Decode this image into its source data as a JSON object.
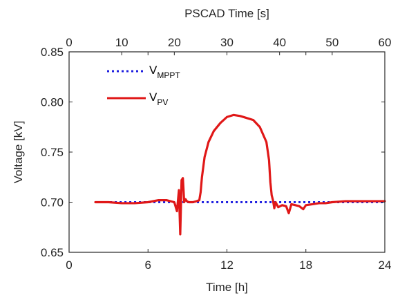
{
  "chart_data": {
    "type": "line",
    "xlabel": "Time [h]",
    "ylabel": "Voltage [kV]",
    "x2label": "PSCAD Time [s]",
    "xlim": [
      0,
      24
    ],
    "x2lim": [
      0,
      60
    ],
    "ylim": [
      0.65,
      0.85
    ],
    "xticks": [
      "0",
      "6",
      "12",
      "18",
      "24"
    ],
    "x2ticks": [
      "0",
      "10",
      "20",
      "30",
      "40",
      "50",
      "60"
    ],
    "yticks": [
      "0.65",
      "0.70",
      "0.75",
      "0.80",
      "0.85"
    ],
    "grid": false,
    "legend_position": "top-left",
    "series": [
      {
        "name": "V_MPPT",
        "label_main": "V",
        "label_sub": "MPPT",
        "color": "#1f1fe0",
        "style": "dotted",
        "x": [
          2,
          24
        ],
        "y": [
          0.7,
          0.7
        ]
      },
      {
        "name": "V_PV",
        "label_main": "V",
        "label_sub": "PV",
        "color": "#e01818",
        "style": "solid",
        "x": [
          2,
          3,
          4,
          5,
          6,
          6.8,
          7.4,
          8.0,
          8.2,
          8.3,
          8.35,
          8.45,
          8.55,
          8.65,
          8.75,
          8.85,
          8.95,
          9.1,
          9.4,
          9.7,
          9.9,
          10.0,
          10.1,
          10.3,
          10.6,
          11.0,
          11.5,
          12.0,
          12.5,
          13.0,
          13.5,
          14.0,
          14.5,
          15.0,
          15.2,
          15.3,
          15.4,
          15.5,
          15.6,
          15.7,
          15.9,
          16.2,
          16.5,
          16.7,
          16.9,
          17.2,
          17.5,
          17.8,
          18.0,
          18.5,
          19.0,
          19.5,
          20.0,
          21.0,
          22.0,
          23.0,
          24.0
        ],
        "y": [
          0.7,
          0.7,
          0.699,
          0.699,
          0.7,
          0.702,
          0.702,
          0.7,
          0.691,
          0.705,
          0.712,
          0.668,
          0.722,
          0.724,
          0.7,
          0.703,
          0.701,
          0.7,
          0.7,
          0.701,
          0.702,
          0.71,
          0.725,
          0.745,
          0.76,
          0.771,
          0.779,
          0.785,
          0.787,
          0.786,
          0.784,
          0.782,
          0.775,
          0.76,
          0.742,
          0.72,
          0.707,
          0.702,
          0.694,
          0.7,
          0.695,
          0.697,
          0.696,
          0.689,
          0.698,
          0.697,
          0.696,
          0.693,
          0.697,
          0.698,
          0.699,
          0.699,
          0.7,
          0.701,
          0.701,
          0.701,
          0.701
        ]
      }
    ]
  }
}
